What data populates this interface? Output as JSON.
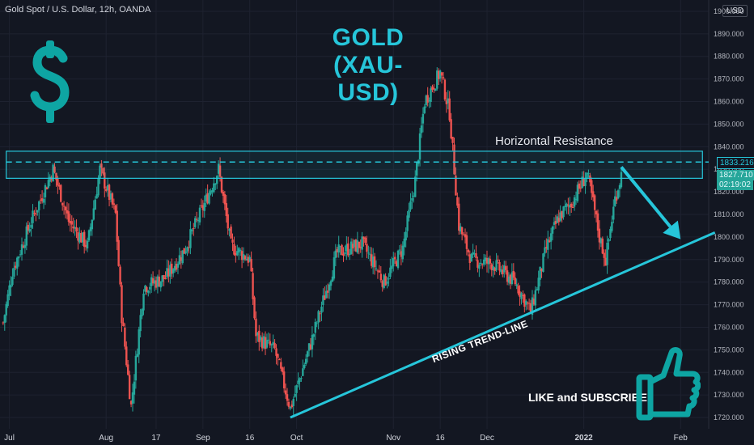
{
  "header": {
    "symbol_line": "Gold Spot / U.S. Dollar, 12h, OANDA",
    "currency": "USD"
  },
  "annotations": {
    "title_line1": "GOLD",
    "title_line2": "(XAU-USD)",
    "resistance_label": "Horizontal Resistance",
    "trend_label": "RISING TREND-LINE",
    "cta": "LIKE and SUBSCRIBE",
    "dollar_icon": "dollar-icon",
    "thumbs_up_icon": "thumbs-up-icon"
  },
  "price_tags": {
    "resistance_level": "1833.216",
    "last_price": "1827.710",
    "countdown": "02:19:02"
  },
  "colors": {
    "bg": "#131722",
    "up": "#26a69a",
    "down": "#ef5350",
    "accent": "#26c6da",
    "grid": "#1e2230",
    "axis_text": "#b2b5be"
  },
  "chart_data": {
    "type": "candlestick",
    "title": "",
    "xlabel": "",
    "ylabel": "",
    "ylim": [
      1715,
      1905
    ],
    "y_ticks": [
      1720,
      1730,
      1740,
      1750,
      1760,
      1770,
      1780,
      1790,
      1800,
      1810,
      1820,
      1830,
      1840,
      1850,
      1860,
      1870,
      1880,
      1890,
      1900
    ],
    "x_ticks": [
      {
        "date": "2021-07-01",
        "label": "Jul"
      },
      {
        "date": "2021-08-01",
        "label": "Aug"
      },
      {
        "date": "2021-08-17",
        "label": "17"
      },
      {
        "date": "2021-09-01",
        "label": "Sep"
      },
      {
        "date": "2021-09-16",
        "label": "16"
      },
      {
        "date": "2021-10-01",
        "label": "Oct"
      },
      {
        "date": "2021-11-01",
        "label": "Nov"
      },
      {
        "date": "2021-11-16",
        "label": "16"
      },
      {
        "date": "2021-12-01",
        "label": "Dec"
      },
      {
        "date": "2022-01-01",
        "label": "2022"
      },
      {
        "date": "2022-02-01",
        "label": "Feb"
      }
    ],
    "x_range": [
      "2021-06-28",
      "2022-02-10"
    ],
    "resistance_zone": [
      1826,
      1838
    ],
    "resistance_line": 1833.216,
    "trend_line": [
      {
        "date": "2021-09-29",
        "price": 1720
      },
      {
        "date": "2022-02-12",
        "price": 1802
      }
    ],
    "arrow": [
      {
        "date": "2022-01-13",
        "price": 1831
      },
      {
        "date": "2022-02-01",
        "price": 1799
      }
    ],
    "price_keypoints": [
      {
        "date": "2021-06-29",
        "price": 1762
      },
      {
        "date": "2021-07-02",
        "price": 1785
      },
      {
        "date": "2021-07-08",
        "price": 1807
      },
      {
        "date": "2021-07-15",
        "price": 1830
      },
      {
        "date": "2021-07-20",
        "price": 1807
      },
      {
        "date": "2021-07-26",
        "price": 1796
      },
      {
        "date": "2021-07-30",
        "price": 1830
      },
      {
        "date": "2021-08-04",
        "price": 1810
      },
      {
        "date": "2021-08-06",
        "price": 1765
      },
      {
        "date": "2021-08-09",
        "price": 1725
      },
      {
        "date": "2021-08-13",
        "price": 1778
      },
      {
        "date": "2021-08-20",
        "price": 1782
      },
      {
        "date": "2021-08-26",
        "price": 1794
      },
      {
        "date": "2021-09-01",
        "price": 1813
      },
      {
        "date": "2021-09-06",
        "price": 1830
      },
      {
        "date": "2021-09-10",
        "price": 1796
      },
      {
        "date": "2021-09-16",
        "price": 1790
      },
      {
        "date": "2021-09-18",
        "price": 1756
      },
      {
        "date": "2021-09-24",
        "price": 1750
      },
      {
        "date": "2021-09-29",
        "price": 1724
      },
      {
        "date": "2021-10-06",
        "price": 1755
      },
      {
        "date": "2021-10-14",
        "price": 1793
      },
      {
        "date": "2021-10-22",
        "price": 1797
      },
      {
        "date": "2021-10-29",
        "price": 1780
      },
      {
        "date": "2021-11-04",
        "price": 1795
      },
      {
        "date": "2021-11-08",
        "price": 1825
      },
      {
        "date": "2021-11-11",
        "price": 1860
      },
      {
        "date": "2021-11-16",
        "price": 1873
      },
      {
        "date": "2021-11-19",
        "price": 1855
      },
      {
        "date": "2021-11-22",
        "price": 1805
      },
      {
        "date": "2021-11-26",
        "price": 1790
      },
      {
        "date": "2021-12-03",
        "price": 1788
      },
      {
        "date": "2021-12-10",
        "price": 1780
      },
      {
        "date": "2021-12-15",
        "price": 1767
      },
      {
        "date": "2021-12-20",
        "price": 1795
      },
      {
        "date": "2021-12-24",
        "price": 1809
      },
      {
        "date": "2021-12-28",
        "price": 1815
      },
      {
        "date": "2022-01-02",
        "price": 1828
      },
      {
        "date": "2022-01-04",
        "price": 1815
      },
      {
        "date": "2022-01-06",
        "price": 1800
      },
      {
        "date": "2022-01-08",
        "price": 1790
      },
      {
        "date": "2022-01-11",
        "price": 1817
      },
      {
        "date": "2022-01-13",
        "price": 1827.7
      }
    ]
  }
}
